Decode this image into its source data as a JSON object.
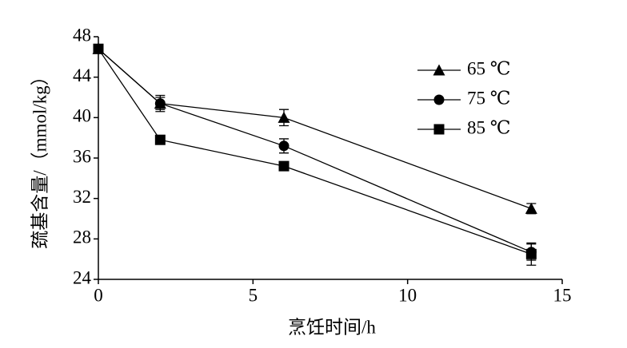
{
  "chart_data": {
    "type": "line",
    "x_label": "烹饪时间/h",
    "y_label": "巯基含量/（mmol/kg）",
    "xlim": [
      0,
      15
    ],
    "xticks": [
      0,
      5,
      10,
      15
    ],
    "ylim": [
      24,
      48
    ],
    "yticks": [
      24,
      28,
      32,
      36,
      40,
      44,
      48
    ],
    "grid": false,
    "legend": "upper right",
    "series": [
      {
        "name": "65 ℃",
        "color": "#000000",
        "marker": "triangle",
        "x": [
          0,
          2,
          6,
          14
        ],
        "values": [
          46.8,
          41.4,
          40.0,
          31.0
        ],
        "errors": [
          0.3,
          0.8,
          0.8,
          0.5
        ]
      },
      {
        "name": "75 ℃",
        "color": "#000000",
        "marker": "circle",
        "x": [
          0,
          2,
          6,
          14
        ],
        "values": [
          46.8,
          41.4,
          37.2,
          26.7
        ],
        "errors": [
          0.3,
          0.6,
          0.7,
          0.8
        ]
      },
      {
        "name": "85 ℃",
        "color": "#000000",
        "marker": "square",
        "x": [
          0,
          2,
          6,
          14
        ],
        "values": [
          46.8,
          37.8,
          35.2,
          26.5
        ],
        "errors": [
          0.3,
          0.3,
          0.3,
          1.1
        ]
      }
    ]
  }
}
